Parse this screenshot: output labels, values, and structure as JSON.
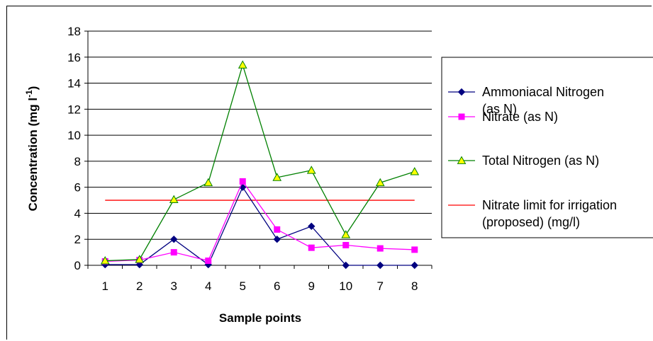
{
  "chart_data": {
    "type": "line",
    "title": "",
    "xlabel": "Sample points",
    "ylabel_main": "Concentration (mg l",
    "ylabel_sup": "-1",
    "ylabel_close": ")",
    "ylim": [
      0,
      18
    ],
    "yticks": [
      "0",
      "2",
      "4",
      "6",
      "8",
      "10",
      "12",
      "14",
      "16",
      "18"
    ],
    "categories": [
      "1",
      "2",
      "3",
      "4",
      "5",
      "6",
      "9",
      "10",
      "7",
      "8"
    ],
    "grid": true,
    "legend_position": "right",
    "series": [
      {
        "name_lines": [
          "Ammoniacal Nitrogen",
          "(as N)"
        ],
        "color": "#000080",
        "marker": "diamond",
        "values": [
          0.05,
          0.05,
          2.0,
          0.05,
          6.0,
          2.0,
          3.0,
          0.0,
          0.0,
          0.0
        ]
      },
      {
        "name_lines": [
          "Nitrate (as N)"
        ],
        "color": "#ff00ff",
        "marker": "square",
        "values": [
          0.3,
          0.4,
          1.0,
          0.35,
          6.45,
          2.75,
          1.35,
          1.55,
          1.3,
          1.2
        ]
      },
      {
        "name_lines": [
          "Total Nitrogen (as N)"
        ],
        "color": "#008000",
        "marker": "triangle",
        "marker_fill": "#ffff00",
        "values": [
          0.35,
          0.45,
          5.05,
          6.35,
          15.4,
          6.75,
          7.3,
          2.35,
          6.35,
          7.2
        ]
      },
      {
        "name_lines": [
          "Nitrate limit for irrigation",
          "(proposed) (mg/l)"
        ],
        "color": "#ff0000",
        "marker": "none",
        "values": [
          5,
          5,
          5,
          5,
          5,
          5,
          5,
          5,
          5,
          5
        ]
      }
    ]
  }
}
